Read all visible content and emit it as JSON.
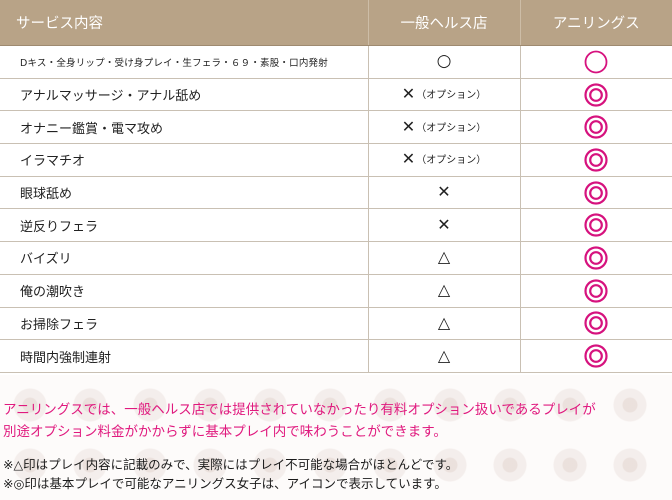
{
  "table": {
    "headers": {
      "service": "サービス内容",
      "health": "一般ヘルス店",
      "aniring": "アニリングス"
    },
    "rows": [
      {
        "service": "Dキス・全身リップ・受け身プレイ・生フェラ・６９・素股・口内発射",
        "health_mark": "○",
        "health_note": "",
        "aniring_mark": "single-circle",
        "small": true
      },
      {
        "service": "アナルマッサージ・アナル舐め",
        "health_mark": "✕",
        "health_note": "（オプション）",
        "aniring_mark": "double-circle"
      },
      {
        "service": "オナニー鑑賞・電マ攻め",
        "health_mark": "✕",
        "health_note": "（オプション）",
        "aniring_mark": "double-circle"
      },
      {
        "service": "イラマチオ",
        "health_mark": "✕",
        "health_note": "（オプション）",
        "aniring_mark": "double-circle"
      },
      {
        "service": "眼球舐め",
        "health_mark": "✕",
        "health_note": "",
        "aniring_mark": "double-circle"
      },
      {
        "service": "逆反りフェラ",
        "health_mark": "✕",
        "health_note": "",
        "aniring_mark": "double-circle"
      },
      {
        "service": "バイズリ",
        "health_mark": "△",
        "health_note": "",
        "aniring_mark": "double-circle"
      },
      {
        "service": "俺の潮吹き",
        "health_mark": "△",
        "health_note": "",
        "aniring_mark": "double-circle"
      },
      {
        "service": "お掃除フェラ",
        "health_mark": "△",
        "health_note": "",
        "aniring_mark": "double-circle"
      },
      {
        "service": "時間内強制連射",
        "health_mark": "△",
        "health_note": "",
        "aniring_mark": "double-circle"
      }
    ]
  },
  "notes": {
    "pink_line1": "アニリングスでは、一般ヘルス店では提供されていなかったり有料オプション扱いであるプレイが",
    "pink_line2": "別途オプション料金がかからずに基本プレイ内で味わうことができます。",
    "black_line1": "※△印はプレイ内容に記載のみで、実際にはプレイ不可能な場合がほとんどです。",
    "black_line2": "※◎印は基本プレイで可能なアニリングス女子は、アイコンで表示しています。"
  },
  "colors": {
    "header_bg": "#b8a387",
    "accent_pink": "#e0197e",
    "mark_pink": "#d6127e"
  }
}
